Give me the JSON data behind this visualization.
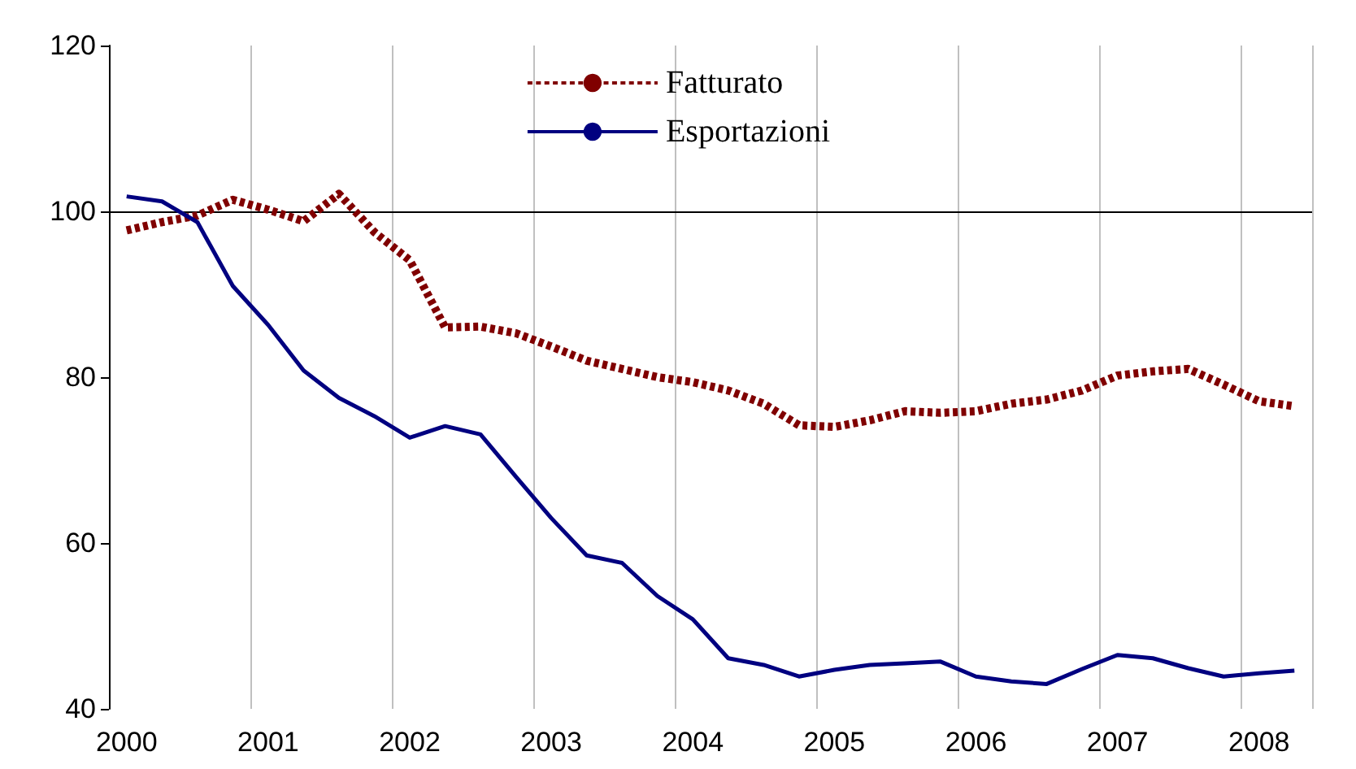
{
  "chart_data": {
    "type": "line",
    "categories": [
      "2000",
      null,
      null,
      null,
      "2001",
      null,
      null,
      null,
      "2002",
      null,
      null,
      null,
      "2003",
      null,
      null,
      null,
      "2004",
      null,
      null,
      null,
      "2005",
      null,
      null,
      null,
      "2006",
      null,
      null,
      null,
      "2007",
      null,
      null,
      null,
      "2008",
      null
    ],
    "series": [
      {
        "name": "Fatturato",
        "color": "#800000",
        "line_style": "dashed",
        "values": [
          97.7,
          98.7,
          99.5,
          101.4,
          100.2,
          98.8,
          102.1,
          97.5,
          94.1,
          86,
          86.1,
          85.3,
          83.7,
          82,
          81,
          80,
          79.4,
          78.4,
          76.8,
          74.2,
          74,
          74.8,
          75.9,
          75.7,
          75.9,
          76.8,
          77.3,
          78.4,
          80.2,
          80.7,
          81,
          79.1,
          77.1,
          76.5
        ]
      },
      {
        "name": "Esportazioni",
        "color": "#000080",
        "line_style": "solid",
        "values": [
          101.8,
          101.2,
          98.7,
          91,
          86.3,
          80.8,
          77.5,
          75.3,
          72.7,
          74.1,
          73.1,
          68,
          63,
          58.5,
          57.6,
          53.6,
          50.8,
          46.1,
          45.3,
          43.9,
          44.7,
          45.3,
          45.5,
          45.7,
          43.9,
          43.3,
          43,
          44.8,
          46.5,
          46.1,
          44.9,
          43.9,
          44.3,
          44.6
        ]
      }
    ],
    "ylim": [
      40,
      120
    ],
    "yticks": [
      40,
      60,
      80,
      100,
      120
    ],
    "grid": "x",
    "legend": "top",
    "marker": "none",
    "ref_lines": [
      {
        "axis": "y",
        "value": 100,
        "color": "#000000"
      }
    ]
  }
}
